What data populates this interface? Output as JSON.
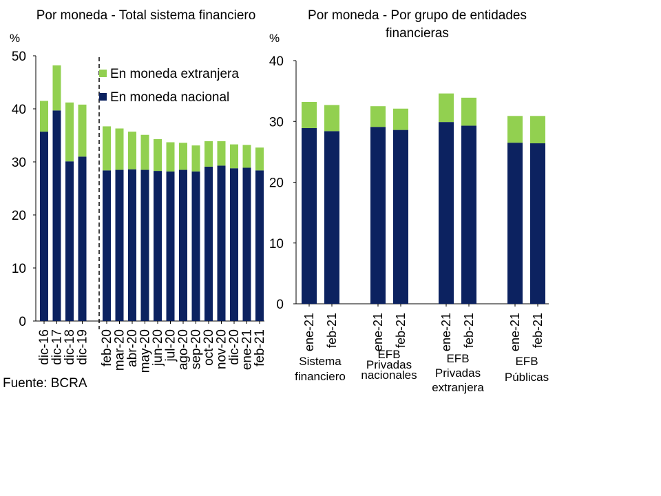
{
  "source": "Fuente: BCRA",
  "colors": {
    "foreign": "#92d050",
    "domestic": "#0c2260",
    "axis": "#000000"
  },
  "chart_data": [
    {
      "type": "bar",
      "stacked": true,
      "title": "Por moneda - Total sistema financiero",
      "ylabel": "%",
      "ylim": [
        0,
        50
      ],
      "yticks": [
        0,
        10,
        20,
        30,
        40,
        50
      ],
      "legend": {
        "position": "top-right",
        "entries": [
          "En moneda extranjera",
          "En moneda nacional"
        ]
      },
      "groups": [
        {
          "categories": [
            "dic-16",
            "dic-17",
            "dic-18",
            "dic-19"
          ],
          "domestic": [
            35.7,
            39.7,
            30.1,
            31.0
          ],
          "foreign": [
            5.8,
            8.5,
            11.1,
            9.8
          ]
        },
        {
          "categories": [
            "feb-20",
            "mar-20",
            "abr-20",
            "may-20",
            "jun-20",
            "jul-20",
            "ago-20",
            "sep-20",
            "oct-20",
            "nov-20",
            "dic-20",
            "ene-21",
            "feb-21"
          ],
          "domestic": [
            28.4,
            28.5,
            28.6,
            28.5,
            28.3,
            28.2,
            28.5,
            28.2,
            29.1,
            29.3,
            28.8,
            28.9,
            28.4
          ],
          "foreign": [
            8.3,
            7.8,
            7.1,
            6.6,
            6.0,
            5.5,
            5.1,
            4.9,
            4.8,
            4.6,
            4.5,
            4.3,
            4.3
          ]
        }
      ],
      "series": [
        {
          "name": "En moneda nacional",
          "key": "domestic"
        },
        {
          "name": "En moneda extranjera",
          "key": "foreign"
        }
      ]
    },
    {
      "type": "bar",
      "stacked": true,
      "title": "Por moneda - Por grupo de entidades financieras",
      "ylabel": "%",
      "ylim": [
        0,
        40
      ],
      "yticks": [
        0,
        10,
        20,
        30,
        40
      ],
      "groups": [
        {
          "name": "Sistema financiero",
          "categories": [
            "ene-21",
            "feb-21"
          ],
          "domestic": [
            28.9,
            28.4
          ],
          "foreign": [
            4.3,
            4.3
          ]
        },
        {
          "name": "EFB Privadas nacionales",
          "categories": [
            "ene-21",
            "feb-21"
          ],
          "domestic": [
            29.1,
            28.6
          ],
          "foreign": [
            3.4,
            3.5
          ]
        },
        {
          "name": "EFB Privadas extranjera",
          "categories": [
            "ene-21",
            "feb-21"
          ],
          "domestic": [
            29.9,
            29.3
          ],
          "foreign": [
            4.7,
            4.6
          ]
        },
        {
          "name": "EFB Públicas",
          "categories": [
            "ene-21",
            "feb-21"
          ],
          "domestic": [
            26.5,
            26.4
          ],
          "foreign": [
            4.4,
            4.5
          ]
        }
      ],
      "series": [
        {
          "name": "En moneda nacional",
          "key": "domestic"
        },
        {
          "name": "En moneda extranjera",
          "key": "foreign"
        }
      ]
    }
  ]
}
